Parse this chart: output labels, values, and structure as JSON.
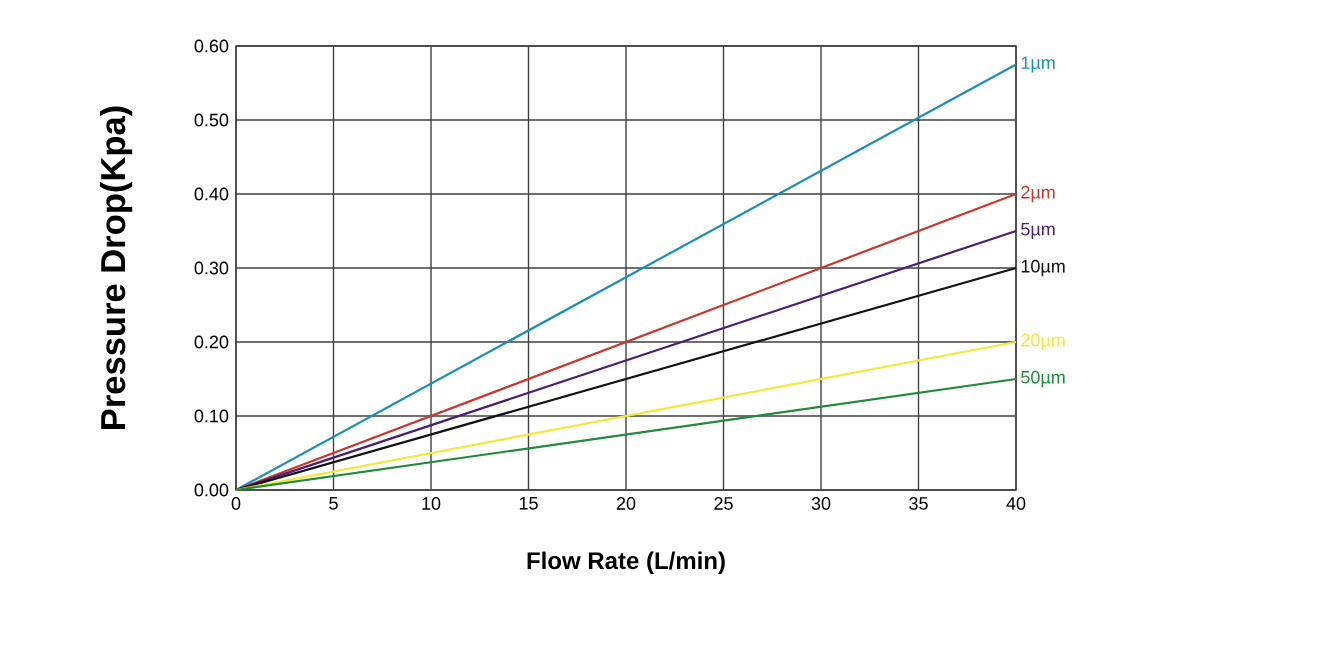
{
  "chart_data": {
    "type": "line",
    "xlabel": "Flow Rate (L/min)",
    "ylabel": "Pressure Drop(Kpa)",
    "xlim": [
      0,
      40
    ],
    "ylim": [
      0,
      0.6
    ],
    "xticks": [
      0,
      5,
      10,
      15,
      20,
      25,
      30,
      35,
      40
    ],
    "yticks": [
      {
        "value": 0,
        "label": "0.00"
      },
      {
        "value": 0.1,
        "label": "0.10"
      },
      {
        "value": 0.2,
        "label": "0.20"
      },
      {
        "value": 0.3,
        "label": "0.30"
      },
      {
        "value": 0.4,
        "label": "0.40"
      },
      {
        "value": 0.5,
        "label": "0.50"
      },
      {
        "value": 0.6,
        "label": "0.60"
      }
    ],
    "grid": true,
    "marker": "none",
    "line_style": "solid",
    "x": [
      0,
      40
    ],
    "series": [
      {
        "name": "1µm",
        "color": "#1a8fb5",
        "values": [
          0,
          0.575
        ]
      },
      {
        "name": "2µm",
        "color": "#c8382a",
        "values": [
          0,
          0.4
        ]
      },
      {
        "name": "5µm",
        "color": "#4b1e78",
        "values": [
          0,
          0.35
        ]
      },
      {
        "name": "10µm",
        "color": "#111111",
        "values": [
          0,
          0.3
        ]
      },
      {
        "name": "20µm",
        "color": "#f2e83a",
        "values": [
          0,
          0.2
        ]
      },
      {
        "name": "50µm",
        "color": "#1f8a3a",
        "values": [
          0,
          0.15
        ]
      }
    ]
  }
}
